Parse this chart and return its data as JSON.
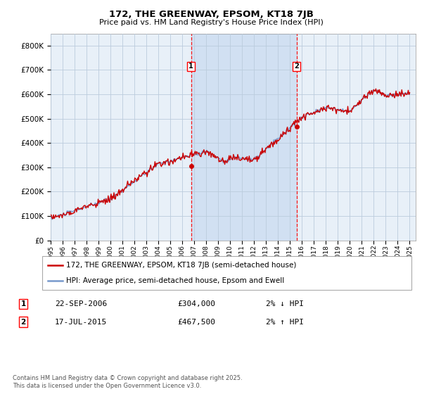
{
  "title": "172, THE GREENWAY, EPSOM, KT18 7JB",
  "subtitle": "Price paid vs. HM Land Registry's House Price Index (HPI)",
  "ylabel_ticks": [
    "£0",
    "£100K",
    "£200K",
    "£300K",
    "£400K",
    "£500K",
    "£600K",
    "£700K",
    "£800K"
  ],
  "ylim": [
    0,
    850000
  ],
  "hpi_color": "#7799cc",
  "price_color": "#cc0000",
  "plot_bg": "#e8f0f8",
  "span_color": "#c8daf0",
  "grid_color": "#bbccdd",
  "marker1_x": 2006.73,
  "marker1_y": 304000,
  "marker2_x": 2015.54,
  "marker2_y": 467500,
  "annotation1": [
    "1",
    "22-SEP-2006",
    "£304,000",
    "2% ↓ HPI"
  ],
  "annotation2": [
    "2",
    "17-JUL-2015",
    "£467,500",
    "2% ↑ HPI"
  ],
  "legend1": "172, THE GREENWAY, EPSOM, KT18 7JB (semi-detached house)",
  "legend2": "HPI: Average price, semi-detached house, Epsom and Ewell",
  "footnote": "Contains HM Land Registry data © Crown copyright and database right 2025.\nThis data is licensed under the Open Government Licence v3.0.",
  "xticks": [
    1995,
    1996,
    1997,
    1998,
    1999,
    2000,
    2001,
    2002,
    2003,
    2004,
    2005,
    2006,
    2007,
    2008,
    2009,
    2010,
    2011,
    2012,
    2013,
    2014,
    2015,
    2016,
    2017,
    2018,
    2019,
    2020,
    2021,
    2022,
    2023,
    2024,
    2025
  ]
}
